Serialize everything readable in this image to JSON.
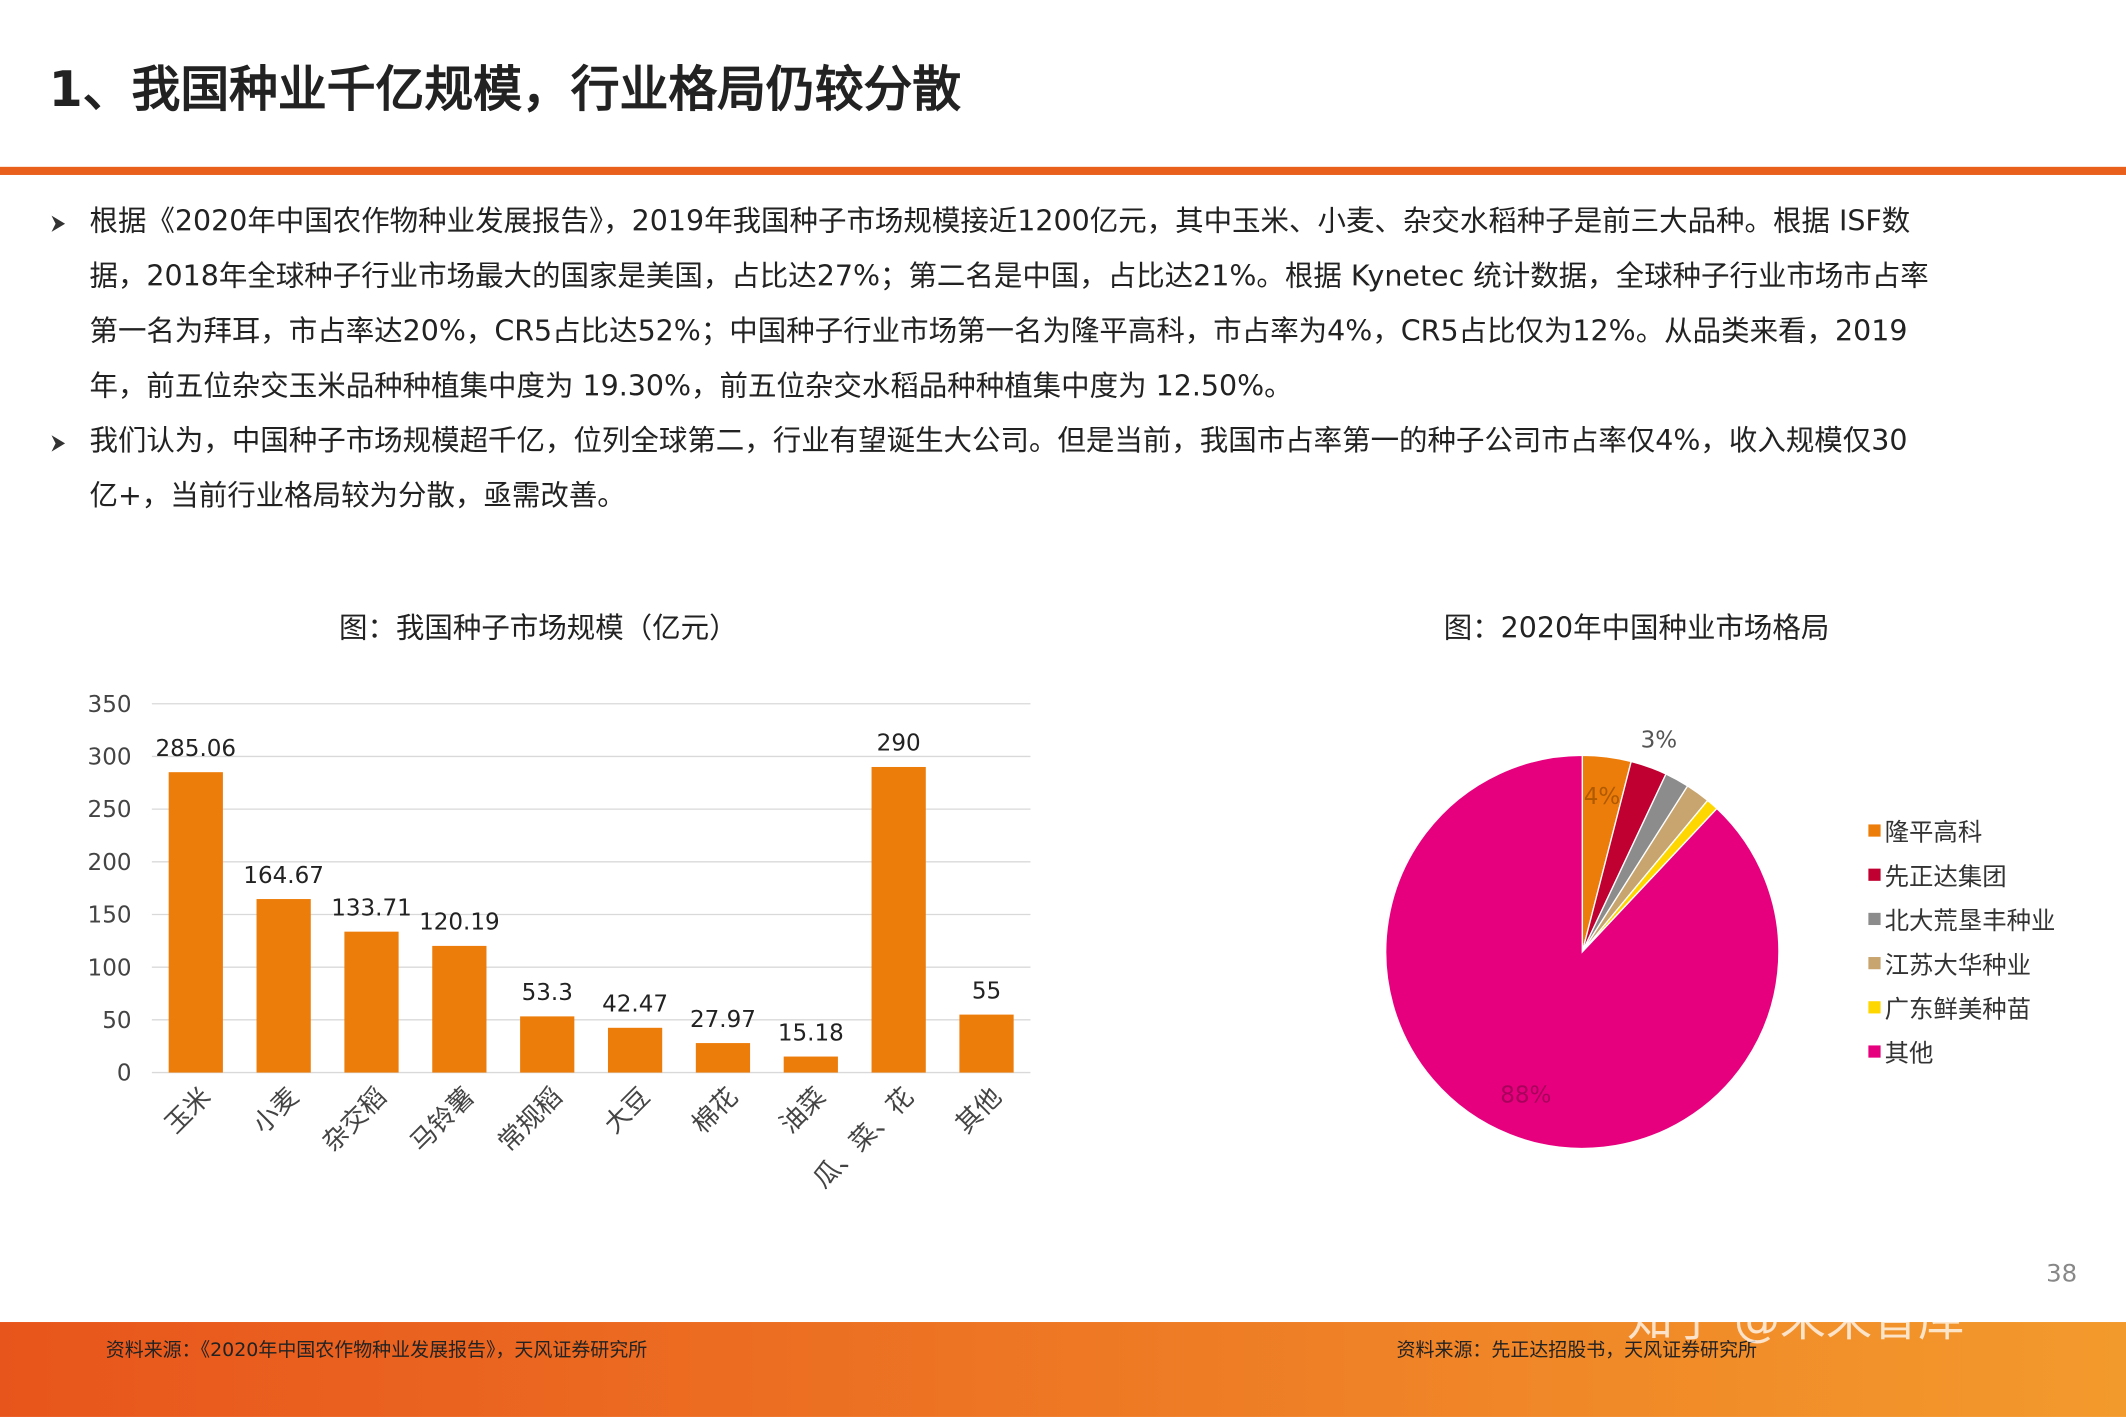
{
  "header": {
    "title": "1、我国种业千亿规模，行业格局仍较分散"
  },
  "bullets": [
    [
      "根据《2020年中国农作物种业发展报告》，2019年我国种子市场规模接近1200亿元，其中玉米、小麦、杂交水稻种子是前三大品种。根据 ISF数",
      "据，2018年全球种子行业市场最大的国家是美国，占比达27%；第二名是中国，占比达21%。根据 Kynetec 统计数据，全球种子行业市场市占率",
      "第一名为拜耳，市占率达20%，CR5占比达52%；中国种子行业市场第一名为隆平高科，市占率为4%，CR5占比仅为12%。从品类来看，2019",
      "年，前五位杂交玉米品种种植集中度为 19.30%，前五位杂交水稻品种种植集中度为 12.50%。"
    ],
    [
      "我们认为，中国种子市场规模超千亿，位列全球第二，行业有望诞生大公司。但是当前，我国市占率第一的种子公司市占率仅4%，收入规模仅30",
      "亿+，当前行业格局较为分散，亟需改善。"
    ]
  ],
  "chart_data": [
    {
      "type": "bar",
      "title": "图：我国种子市场规模（亿元）",
      "categories": [
        "玉米",
        "小麦",
        "杂交稻",
        "马铃薯",
        "常规稻",
        "大豆",
        "棉花",
        "油菜",
        "瓜、菜、花",
        "其他"
      ],
      "values": [
        285.06,
        164.67,
        133.71,
        120.19,
        53.3,
        42.47,
        27.97,
        15.18,
        290,
        55
      ],
      "color": "#ED7D0A",
      "ylim": [
        0,
        350
      ],
      "yticks": [
        0,
        50,
        100,
        150,
        200,
        250,
        300,
        350
      ],
      "grid": true
    },
    {
      "type": "pie",
      "title": "图：2020年中国种业市场格局",
      "categories": [
        "隆平高科",
        "先正达集团",
        "北大荒垦丰种业",
        "江苏大华种业",
        "广东鲜美种苗",
        "其他"
      ],
      "values": [
        4,
        3,
        2,
        2,
        1,
        88
      ],
      "value_labels": [
        "4%",
        "3%",
        null,
        null,
        null,
        "88%"
      ],
      "colors": [
        "#ED7D0A",
        "#C00030",
        "#8C8C8C",
        "#C8A46E",
        "#FFD700",
        "#E6007E"
      ],
      "legend": "right"
    }
  ],
  "footer": {
    "source_left": "资料来源：《2020年中国农作物种业发展报告》，天风证券研究所",
    "source_right": "资料来源：先正达招股书，天风证券研究所",
    "page": "38",
    "watermark": "知乎 @未来智库"
  }
}
